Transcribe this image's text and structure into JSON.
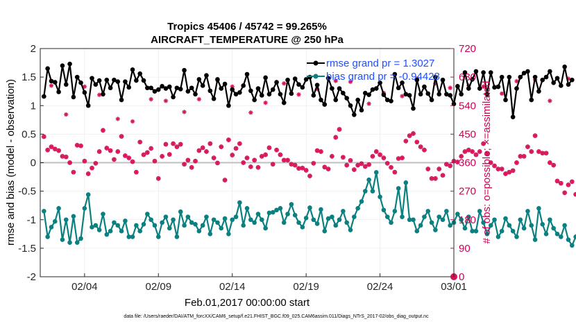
{
  "chart_data": {
    "type": "line",
    "title": "Tropics 45406 / 45742 = 99.265%",
    "subtitle": "AIRCRAFT_TEMPERATURE @ 250 hPa",
    "xlabel": "Feb.01,2017 00:00:00 start",
    "ylabel": "rmse and bias (model - observation)",
    "ylabel_right": "# of obs: o=possible; ×=assimilated",
    "footnote": "data file: /Users/raeder/DAI/ATM_forcXX/CAM6_setup/f.e21.FHIST_BGC.f09_025.CAM6assim.011/Diags_NTrS_2017-02/obs_diag_output.nc",
    "x_tick_labels": [
      "02/04",
      "02/09",
      "02/14",
      "02/19",
      "02/24",
      "03/01"
    ],
    "x_tick_days": [
      3,
      8,
      13,
      18,
      23,
      28
    ],
    "xlim_days": [
      0,
      28
    ],
    "ylim": [
      -2,
      2
    ],
    "y_ticks": [
      "-2",
      "-1.5",
      "-1",
      "-0.5",
      "0",
      "0.5",
      "1",
      "1.5",
      "2"
    ],
    "y_tick_values": [
      -2,
      -1.5,
      -1,
      -0.5,
      0,
      0.5,
      1,
      1.5,
      2
    ],
    "ylim_right": [
      0,
      720
    ],
    "y_ticks_right": [
      "0",
      "90",
      "180",
      "270",
      "360",
      "450",
      "540",
      "630",
      "720"
    ],
    "y_tick_values_right": [
      0,
      90,
      180,
      270,
      360,
      450,
      540,
      630,
      720
    ],
    "x_start_day": 0.25,
    "x_step_days": 0.25,
    "legend": [
      {
        "label": "rmse grand pr = 1.3027",
        "color": "#000000"
      },
      {
        "label": "bias grand pr = -0.94428",
        "color": "#0a8080"
      }
    ],
    "colors": {
      "rmse": "#000000",
      "bias": "#0a8080",
      "obs": "#d6145a",
      "zero_line": "#bfbfbf",
      "grid": "#e6e6e6"
    },
    "series": [
      {
        "name": "rmse",
        "values": [
          1.16,
          1.65,
          1.43,
          1.41,
          1.24,
          1.7,
          1.37,
          1.73,
          1.15,
          1.5,
          1.4,
          1.23,
          1.0,
          1.48,
          1.37,
          1.44,
          1.2,
          1.45,
          1.31,
          1.45,
          1.42,
          1.1,
          1.42,
          1.32,
          1.63,
          1.44,
          1.56,
          1.44,
          1.31,
          1.31,
          1.25,
          1.28,
          1.34,
          1.3,
          1.33,
          1.15,
          1.31,
          1.29,
          1.62,
          1.25,
          1.31,
          1.2,
          1.46,
          1.35,
          1.53,
          1.26,
          1.12,
          1.46,
          1.3,
          1.38,
          1.0,
          1.28,
          1.2,
          1.23,
          1.35,
          1.55,
          1.26,
          1.1,
          1.3,
          1.18,
          1.49,
          1.2,
          1.28,
          1.41,
          1.2,
          1.05,
          1.45,
          1.21,
          1.47,
          1.37,
          1.32,
          1.46,
          1.5,
          1.18,
          1.36,
          1.1,
          1.02,
          1.48,
          1.3,
          1.1,
          1.3,
          1.22,
          1.13,
          1.0,
          0.84,
          1.1,
          0.92,
          1.22,
          1.19,
          1.28,
          1.3,
          1.4,
          1.19,
          1.1,
          1.08,
          1.55,
          1.31,
          1.4,
          1.2,
          1.18,
          0.95,
          1.45,
          1.2,
          1.33,
          1.21,
          1.1,
          1.5,
          1.2,
          1.45,
          1.2,
          1.18,
          1.03,
          1.34,
          1.2,
          1.58,
          1.3,
          1.46,
          1.6,
          1.3,
          1.58,
          1.2,
          1.58,
          1.32,
          1.33,
          1.5,
          1.1,
          1.5,
          0.8,
          1.3,
          1.5,
          1.57,
          1.6,
          1.1,
          1.5,
          1.25,
          1.45,
          1.5,
          1.6,
          1.4,
          1.48,
          1.35,
          1.68,
          1.37,
          1.45
        ]
      },
      {
        "name": "bias",
        "values": [
          -0.85,
          -1.3,
          -1.13,
          -1.03,
          -0.8,
          -1.35,
          -1.0,
          -1.4,
          -0.94,
          -1.4,
          -1.33,
          -0.8,
          -0.56,
          -1.13,
          -1.1,
          -1.18,
          -0.9,
          -1.26,
          -1.2,
          -1.05,
          -1.1,
          -1.2,
          -1.02,
          -1.3,
          -1.3,
          -1.1,
          -1.2,
          -1.08,
          -0.9,
          -1.0,
          -1.1,
          -1.3,
          -1.05,
          -0.95,
          -1.15,
          -1.0,
          -1.3,
          -0.86,
          -1.1,
          -0.95,
          -1.05,
          -1.08,
          -1.2,
          -1.1,
          -0.95,
          -1.25,
          -1.0,
          -1.05,
          -1.15,
          -0.98,
          -1.25,
          -1.0,
          -0.95,
          -0.7,
          -1.1,
          -0.8,
          -1.0,
          -1.05,
          -0.9,
          -1.0,
          -1.15,
          -0.88,
          -0.87,
          -0.83,
          -0.8,
          -1.05,
          -0.9,
          -0.73,
          -0.92,
          -1.05,
          -1.13,
          -0.97,
          -0.79,
          -1.0,
          -1.07,
          -0.82,
          -1.2,
          -0.98,
          -0.95,
          -1.1,
          -1.0,
          -0.85,
          -1.05,
          -1.18,
          -0.95,
          -0.8,
          -0.68,
          -0.5,
          -0.3,
          -0.5,
          -0.17,
          -0.6,
          -0.83,
          -0.95,
          -1.05,
          -0.85,
          -0.45,
          -0.95,
          -0.35,
          -1.0,
          -1.0,
          -1.2,
          -1.1,
          -0.95,
          -0.85,
          -1.05,
          -1.18,
          -0.95,
          -1.0,
          -0.85,
          -1.1,
          -1.05,
          -0.9,
          -1.0,
          -1.15,
          -0.95,
          -1.2,
          -1.2,
          -0.85,
          -1.05,
          -1.25,
          -1.1,
          -1.0,
          -1.3,
          -1.2,
          -0.98,
          -1.1,
          -1.2,
          -1.3,
          -1.0,
          -1.15,
          -0.85,
          -1.1,
          -1.35,
          -0.8,
          -1.08,
          -1.25,
          -1.0,
          -1.15,
          -1.25,
          -1.3,
          -1.1,
          -1.35,
          -1.45,
          -1.3,
          -1.1
        ]
      },
      {
        "name": "obs_assimilated",
        "axis": "right",
        "values": [
          442,
          400,
          410,
          403,
          398,
          380,
          378,
          360,
          330,
          415,
          413,
          365,
          325,
          343,
          358,
          395,
          462,
          406,
          398,
          370,
          395,
          443,
          382,
          375,
          363,
          330,
          425,
          385,
          392,
          405,
          365,
          310,
          380,
          418,
          386,
          420,
          410,
          418,
          355,
          368,
          345,
          365,
          398,
          407,
          395,
          420,
          375,
          359,
          410,
          305,
          432,
          384,
          405,
          420,
          360,
          375,
          347,
          368,
          345,
          380,
          385,
          407,
          355,
          400,
          385,
          368,
          368,
          355,
          352,
          342,
          343,
          336,
          318,
          358,
          398,
          395,
          346,
          340,
          380,
          440,
          465,
          377,
          352,
          367,
          338,
          352,
          357,
          348,
          354,
          380,
          395,
          385,
          375,
          358,
          345,
          330,
          373,
          375,
          428,
          445,
          452,
          425,
          410,
          400,
          340,
          310,
          310,
          340,
          320,
          355,
          350,
          365,
          362,
          380,
          395,
          400,
          395,
          385,
          395,
          420,
          390,
          360,
          350,
          340,
          340,
          325,
          330,
          335,
          360,
          380,
          380,
          410,
          395,
          445,
          395,
          390,
          390,
          360,
          352,
          302,
          295,
          265,
          290,
          300,
          260
        ]
      },
      {
        "name": "obs_extra_marks",
        "axis": "right",
        "values": [
          603,
          512,
          600,
          574,
          498,
          490,
          560,
          555,
          520,
          560,
          620,
          600,
          518,
          549,
          610,
          575,
          592,
          618,
          615,
          546,
          580,
          570,
          625,
          610,
          596,
          603,
          600,
          578,
          617,
          622,
          555,
          625
        ]
      }
    ]
  }
}
